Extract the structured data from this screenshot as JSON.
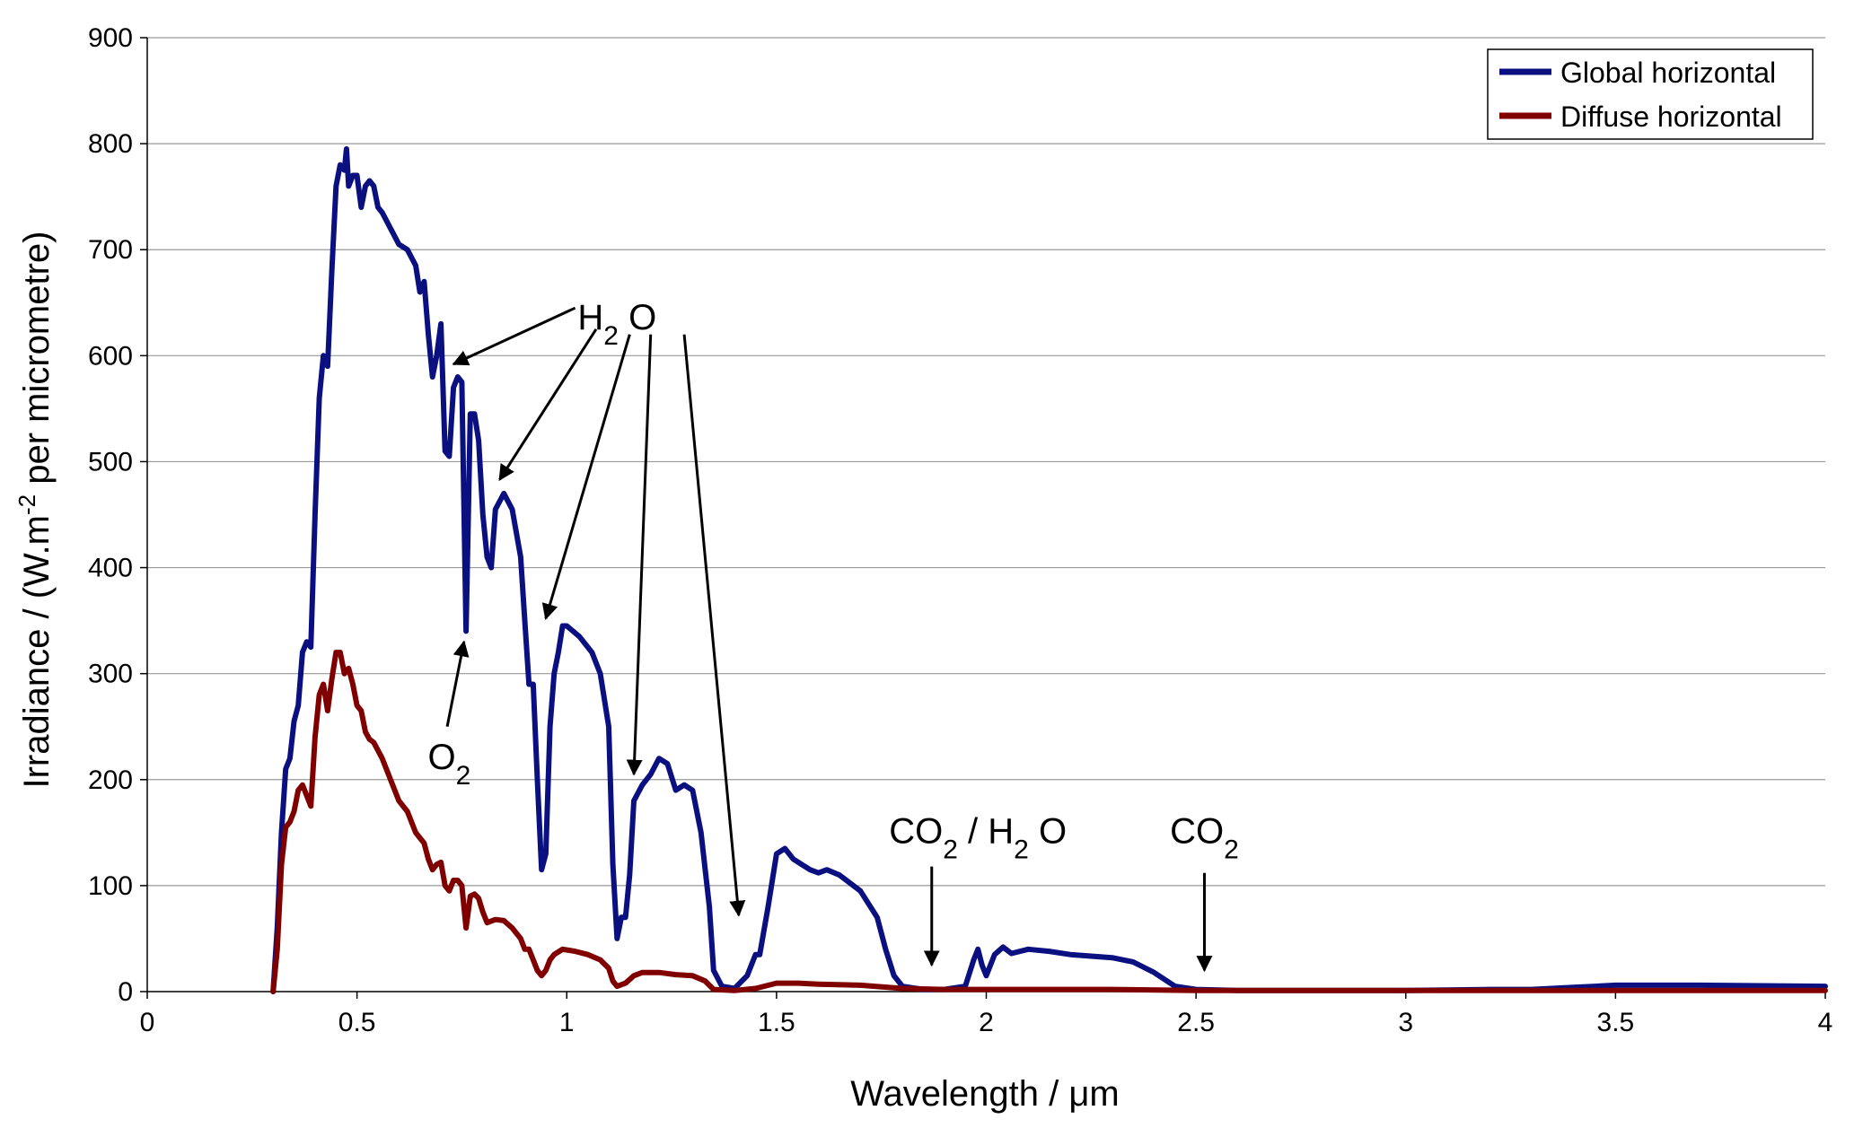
{
  "chart_data": {
    "type": "line",
    "xlabel": "Wavelength / μm",
    "ylabel_parts": {
      "pre": "Irradiance / (W.m",
      "sup": "-2",
      "post": " per micrometre)"
    },
    "xlim": [
      0,
      4
    ],
    "ylim": [
      0,
      900
    ],
    "xticks": [
      0,
      0.5,
      1,
      1.5,
      2,
      2.5,
      3,
      3.5,
      4
    ],
    "xtick_labels": [
      "0",
      "0.5",
      "1",
      "1.5",
      "2",
      "2.5",
      "3",
      "3.5",
      "4"
    ],
    "yticks": [
      0,
      100,
      200,
      300,
      400,
      500,
      600,
      700,
      800,
      900
    ],
    "ytick_labels": [
      "0",
      "100",
      "200",
      "300",
      "400",
      "500",
      "600",
      "700",
      "800",
      "900"
    ],
    "grid": "horizontal",
    "legend": "top-right",
    "series": [
      {
        "name": "Global horizontal",
        "color": "#0a1080",
        "points": [
          [
            0.3,
            0
          ],
          [
            0.31,
            60
          ],
          [
            0.32,
            150
          ],
          [
            0.33,
            210
          ],
          [
            0.34,
            220
          ],
          [
            0.35,
            255
          ],
          [
            0.36,
            270
          ],
          [
            0.37,
            320
          ],
          [
            0.38,
            330
          ],
          [
            0.39,
            325
          ],
          [
            0.4,
            450
          ],
          [
            0.41,
            560
          ],
          [
            0.42,
            600
          ],
          [
            0.43,
            590
          ],
          [
            0.44,
            680
          ],
          [
            0.45,
            760
          ],
          [
            0.46,
            780
          ],
          [
            0.47,
            775
          ],
          [
            0.475,
            795
          ],
          [
            0.48,
            760
          ],
          [
            0.49,
            770
          ],
          [
            0.5,
            770
          ],
          [
            0.51,
            740
          ],
          [
            0.52,
            760
          ],
          [
            0.53,
            765
          ],
          [
            0.54,
            760
          ],
          [
            0.55,
            740
          ],
          [
            0.56,
            735
          ],
          [
            0.58,
            720
          ],
          [
            0.6,
            705
          ],
          [
            0.62,
            700
          ],
          [
            0.64,
            685
          ],
          [
            0.65,
            660
          ],
          [
            0.66,
            670
          ],
          [
            0.67,
            620
          ],
          [
            0.68,
            580
          ],
          [
            0.69,
            600
          ],
          [
            0.7,
            630
          ],
          [
            0.71,
            510
          ],
          [
            0.72,
            505
          ],
          [
            0.73,
            570
          ],
          [
            0.74,
            580
          ],
          [
            0.75,
            575
          ],
          [
            0.76,
            340
          ],
          [
            0.77,
            545
          ],
          [
            0.78,
            545
          ],
          [
            0.79,
            520
          ],
          [
            0.8,
            450
          ],
          [
            0.81,
            410
          ],
          [
            0.82,
            400
          ],
          [
            0.83,
            455
          ],
          [
            0.85,
            470
          ],
          [
            0.87,
            455
          ],
          [
            0.89,
            410
          ],
          [
            0.9,
            350
          ],
          [
            0.91,
            290
          ],
          [
            0.92,
            290
          ],
          [
            0.93,
            200
          ],
          [
            0.94,
            115
          ],
          [
            0.95,
            130
          ],
          [
            0.96,
            250
          ],
          [
            0.97,
            300
          ],
          [
            0.98,
            320
          ],
          [
            0.99,
            345
          ],
          [
            1.0,
            345
          ],
          [
            1.03,
            335
          ],
          [
            1.06,
            320
          ],
          [
            1.08,
            300
          ],
          [
            1.1,
            250
          ],
          [
            1.11,
            120
          ],
          [
            1.12,
            50
          ],
          [
            1.13,
            70
          ],
          [
            1.14,
            70
          ],
          [
            1.15,
            110
          ],
          [
            1.16,
            180
          ],
          [
            1.18,
            195
          ],
          [
            1.2,
            205
          ],
          [
            1.22,
            220
          ],
          [
            1.24,
            215
          ],
          [
            1.26,
            190
          ],
          [
            1.28,
            195
          ],
          [
            1.3,
            190
          ],
          [
            1.32,
            150
          ],
          [
            1.34,
            80
          ],
          [
            1.35,
            20
          ],
          [
            1.37,
            5
          ],
          [
            1.4,
            3
          ],
          [
            1.43,
            15
          ],
          [
            1.45,
            35
          ],
          [
            1.46,
            35
          ],
          [
            1.48,
            80
          ],
          [
            1.5,
            130
          ],
          [
            1.52,
            135
          ],
          [
            1.54,
            125
          ],
          [
            1.56,
            120
          ],
          [
            1.58,
            115
          ],
          [
            1.6,
            112
          ],
          [
            1.62,
            115
          ],
          [
            1.65,
            110
          ],
          [
            1.7,
            95
          ],
          [
            1.74,
            70
          ],
          [
            1.76,
            40
          ],
          [
            1.78,
            15
          ],
          [
            1.8,
            5
          ],
          [
            1.85,
            2
          ],
          [
            1.9,
            2
          ],
          [
            1.95,
            5
          ],
          [
            1.97,
            30
          ],
          [
            1.98,
            40
          ],
          [
            1.99,
            25
          ],
          [
            2.0,
            15
          ],
          [
            2.02,
            35
          ],
          [
            2.04,
            42
          ],
          [
            2.06,
            36
          ],
          [
            2.1,
            40
          ],
          [
            2.15,
            38
          ],
          [
            2.2,
            35
          ],
          [
            2.3,
            32
          ],
          [
            2.35,
            28
          ],
          [
            2.4,
            18
          ],
          [
            2.45,
            5
          ],
          [
            2.5,
            2
          ],
          [
            2.6,
            1
          ],
          [
            2.8,
            1
          ],
          [
            3.0,
            1
          ],
          [
            3.2,
            2
          ],
          [
            3.3,
            2
          ],
          [
            3.4,
            4
          ],
          [
            3.5,
            6
          ],
          [
            3.7,
            6
          ],
          [
            4.0,
            5
          ]
        ]
      },
      {
        "name": "Diffuse horizontal",
        "color": "#800000",
        "points": [
          [
            0.3,
            0
          ],
          [
            0.31,
            40
          ],
          [
            0.32,
            120
          ],
          [
            0.33,
            155
          ],
          [
            0.34,
            160
          ],
          [
            0.35,
            170
          ],
          [
            0.36,
            190
          ],
          [
            0.37,
            195
          ],
          [
            0.38,
            185
          ],
          [
            0.39,
            175
          ],
          [
            0.4,
            240
          ],
          [
            0.41,
            280
          ],
          [
            0.42,
            290
          ],
          [
            0.43,
            265
          ],
          [
            0.44,
            295
          ],
          [
            0.45,
            320
          ],
          [
            0.46,
            320
          ],
          [
            0.47,
            300
          ],
          [
            0.48,
            305
          ],
          [
            0.49,
            290
          ],
          [
            0.5,
            270
          ],
          [
            0.51,
            265
          ],
          [
            0.52,
            245
          ],
          [
            0.53,
            238
          ],
          [
            0.54,
            235
          ],
          [
            0.56,
            220
          ],
          [
            0.58,
            200
          ],
          [
            0.6,
            180
          ],
          [
            0.62,
            170
          ],
          [
            0.64,
            150
          ],
          [
            0.65,
            145
          ],
          [
            0.66,
            140
          ],
          [
            0.67,
            125
          ],
          [
            0.68,
            115
          ],
          [
            0.69,
            120
          ],
          [
            0.7,
            122
          ],
          [
            0.71,
            100
          ],
          [
            0.72,
            95
          ],
          [
            0.73,
            105
          ],
          [
            0.74,
            105
          ],
          [
            0.75,
            100
          ],
          [
            0.76,
            60
          ],
          [
            0.77,
            90
          ],
          [
            0.78,
            92
          ],
          [
            0.79,
            88
          ],
          [
            0.8,
            75
          ],
          [
            0.81,
            65
          ],
          [
            0.83,
            68
          ],
          [
            0.85,
            67
          ],
          [
            0.87,
            60
          ],
          [
            0.89,
            50
          ],
          [
            0.9,
            40
          ],
          [
            0.91,
            40
          ],
          [
            0.92,
            30
          ],
          [
            0.93,
            20
          ],
          [
            0.94,
            15
          ],
          [
            0.95,
            20
          ],
          [
            0.96,
            30
          ],
          [
            0.97,
            35
          ],
          [
            0.99,
            40
          ],
          [
            1.02,
            38
          ],
          [
            1.05,
            35
          ],
          [
            1.08,
            30
          ],
          [
            1.1,
            22
          ],
          [
            1.11,
            10
          ],
          [
            1.12,
            5
          ],
          [
            1.14,
            8
          ],
          [
            1.16,
            15
          ],
          [
            1.18,
            18
          ],
          [
            1.22,
            18
          ],
          [
            1.26,
            16
          ],
          [
            1.3,
            15
          ],
          [
            1.33,
            10
          ],
          [
            1.35,
            2
          ],
          [
            1.4,
            1
          ],
          [
            1.45,
            3
          ],
          [
            1.5,
            8
          ],
          [
            1.55,
            8
          ],
          [
            1.6,
            7
          ],
          [
            1.7,
            6
          ],
          [
            1.8,
            3
          ],
          [
            1.9,
            2
          ],
          [
            2.0,
            2
          ],
          [
            2.1,
            2
          ],
          [
            2.3,
            2
          ],
          [
            2.5,
            1
          ],
          [
            3.0,
            1
          ],
          [
            4.0,
            1
          ]
        ]
      }
    ],
    "annotations": [
      {
        "label": "H2O",
        "text_parts": {
          "base": "H",
          "sub": "2",
          "post": " O"
        },
        "x": 1.12,
        "y": 625,
        "arrows": [
          {
            "from": [
              1.02,
              645
            ],
            "to": [
              0.73,
              592
            ]
          },
          {
            "from": [
              1.07,
              625
            ],
            "to": [
              0.84,
              483
            ]
          },
          {
            "from": [
              1.15,
              620
            ],
            "to": [
              0.95,
              352
            ]
          },
          {
            "from": [
              1.2,
              620
            ],
            "to": [
              1.16,
              205
            ]
          },
          {
            "from": [
              1.28,
              620
            ],
            "to": [
              1.41,
              72
            ]
          }
        ]
      },
      {
        "label": "O2",
        "text_parts": {
          "base": "O",
          "sub": "2",
          "post": ""
        },
        "x": 0.72,
        "y": 210,
        "arrows": [
          {
            "from": [
              0.715,
              250
            ],
            "to": [
              0.755,
              330
            ]
          }
        ]
      },
      {
        "label": "CO2 / H2O",
        "text_parts": {
          "base": "CO",
          "sub": "2",
          "post": " / H",
          "sub2": "2",
          "post2": " O"
        },
        "x": 1.98,
        "y": 140,
        "arrows": [
          {
            "from": [
              1.87,
              118
            ],
            "to": [
              1.87,
              25
            ]
          }
        ]
      },
      {
        "label": "CO2",
        "text_parts": {
          "base": "CO",
          "sub": "2",
          "post": ""
        },
        "x": 2.52,
        "y": 140,
        "arrows": [
          {
            "from": [
              2.52,
              112
            ],
            "to": [
              2.52,
              20
            ]
          }
        ]
      }
    ]
  }
}
